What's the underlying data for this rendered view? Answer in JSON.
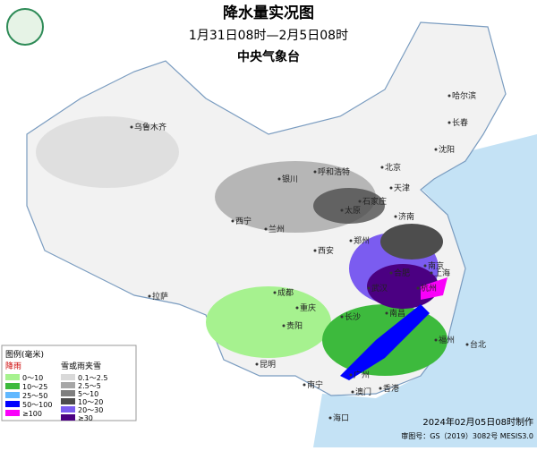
{
  "header": {
    "title": "降水量实况图",
    "subtitle": "1月31日08时—2月5日08时",
    "agency": "中央气象台"
  },
  "legend": {
    "title": "图例(毫米)",
    "rain_title": "降雨",
    "snow_title": "雪或雨夹雪",
    "rain": [
      {
        "label": "0～10",
        "color": "#a6f28f"
      },
      {
        "label": "10～25",
        "color": "#3dba3d"
      },
      {
        "label": "25～50",
        "color": "#61b8ff"
      },
      {
        "label": "50～100",
        "color": "#0000fe"
      },
      {
        "label": "≥100",
        "color": "#fa00fa"
      }
    ],
    "snow": [
      {
        "label": "0.1～2.5",
        "color": "#d9d9d9"
      },
      {
        "label": "2.5～5",
        "color": "#a6a6a6"
      },
      {
        "label": "5～10",
        "color": "#7f7f7f"
      },
      {
        "label": "10～20",
        "color": "#4d4d4d"
      },
      {
        "label": "20～30",
        "color": "#7b5cf0"
      },
      {
        "label": "≥30",
        "color": "#4b0082"
      }
    ]
  },
  "cities": [
    "乌鲁木齐",
    "哈尔滨",
    "长春",
    "沈阳",
    "呼和浩特",
    "北京",
    "天津",
    "银川",
    "石家庄",
    "太原",
    "济南",
    "西宁",
    "兰州",
    "郑州",
    "西安",
    "南京",
    "合肥",
    "上海",
    "杭州",
    "武汉",
    "成都",
    "重庆",
    "长沙",
    "南昌",
    "福州",
    "贵阳",
    "拉萨",
    "昆明",
    "南宁",
    "广州",
    "澳门",
    "香港",
    "台北",
    "海口"
  ],
  "footer": {
    "made": "2024年02月05日08时制作",
    "approval": "审图号：GS（2019）3082号 MESIS3.0"
  }
}
